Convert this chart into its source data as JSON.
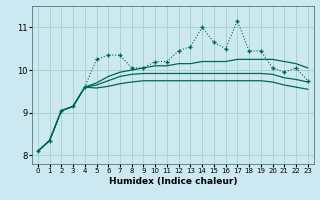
{
  "xlabel": "Humidex (Indice chaleur)",
  "background_color": "#cce8f0",
  "grid_color": "#aad4cc",
  "line_color": "#006655",
  "x_values": [
    0,
    1,
    2,
    3,
    4,
    5,
    6,
    7,
    8,
    9,
    10,
    11,
    12,
    13,
    14,
    15,
    16,
    17,
    18,
    19,
    20,
    21,
    22,
    23
  ],
  "line1_marker": [
    8.1,
    8.35,
    9.05,
    9.15,
    9.6,
    10.25,
    10.35,
    10.35,
    10.05,
    10.05,
    10.2,
    10.2,
    10.45,
    10.55,
    11.0,
    10.65,
    10.5,
    11.15,
    10.45,
    10.45,
    10.05,
    9.95,
    10.05,
    9.75
  ],
  "line2": [
    8.1,
    8.35,
    9.05,
    9.15,
    9.6,
    9.7,
    9.85,
    9.95,
    10.0,
    10.05,
    10.1,
    10.1,
    10.15,
    10.15,
    10.2,
    10.2,
    10.2,
    10.25,
    10.25,
    10.25,
    10.25,
    10.2,
    10.15,
    10.05
  ],
  "line3": [
    8.1,
    8.35,
    9.05,
    9.15,
    9.6,
    9.65,
    9.75,
    9.85,
    9.9,
    9.92,
    9.92,
    9.92,
    9.92,
    9.92,
    9.92,
    9.92,
    9.92,
    9.92,
    9.92,
    9.92,
    9.9,
    9.82,
    9.78,
    9.72
  ],
  "line4": [
    8.1,
    8.35,
    9.05,
    9.15,
    9.6,
    9.58,
    9.62,
    9.68,
    9.72,
    9.75,
    9.75,
    9.75,
    9.75,
    9.75,
    9.75,
    9.75,
    9.75,
    9.75,
    9.75,
    9.75,
    9.72,
    9.65,
    9.6,
    9.55
  ],
  "ylim": [
    7.8,
    11.5
  ],
  "yticks": [
    8,
    9,
    10,
    11
  ],
  "xlim": [
    -0.5,
    23.5
  ],
  "xticks": [
    0,
    1,
    2,
    3,
    4,
    5,
    6,
    7,
    8,
    9,
    10,
    11,
    12,
    13,
    14,
    15,
    16,
    17,
    18,
    19,
    20,
    21,
    22,
    23
  ]
}
